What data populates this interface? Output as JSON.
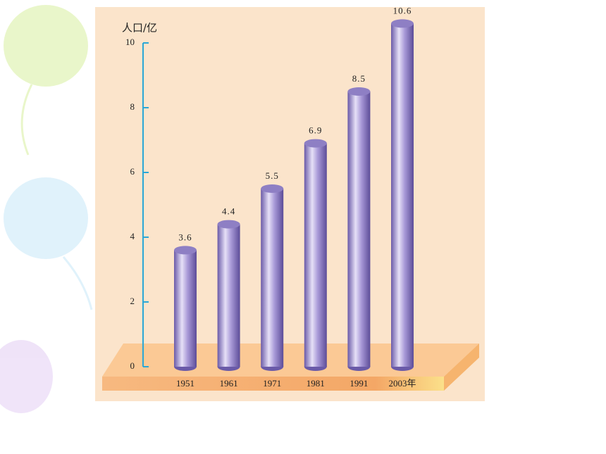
{
  "chart_data": {
    "type": "bar",
    "y_label": "人口/亿",
    "categories": [
      "1951",
      "1961",
      "1971",
      "1981",
      "1991",
      "2003年"
    ],
    "values": [
      3.6,
      4.4,
      5.5,
      6.9,
      8.5,
      10.6
    ],
    "color": "#8e7fc4",
    "ylim": [
      0,
      10
    ],
    "yticks": [
      0,
      2,
      4,
      6,
      8,
      10
    ]
  }
}
